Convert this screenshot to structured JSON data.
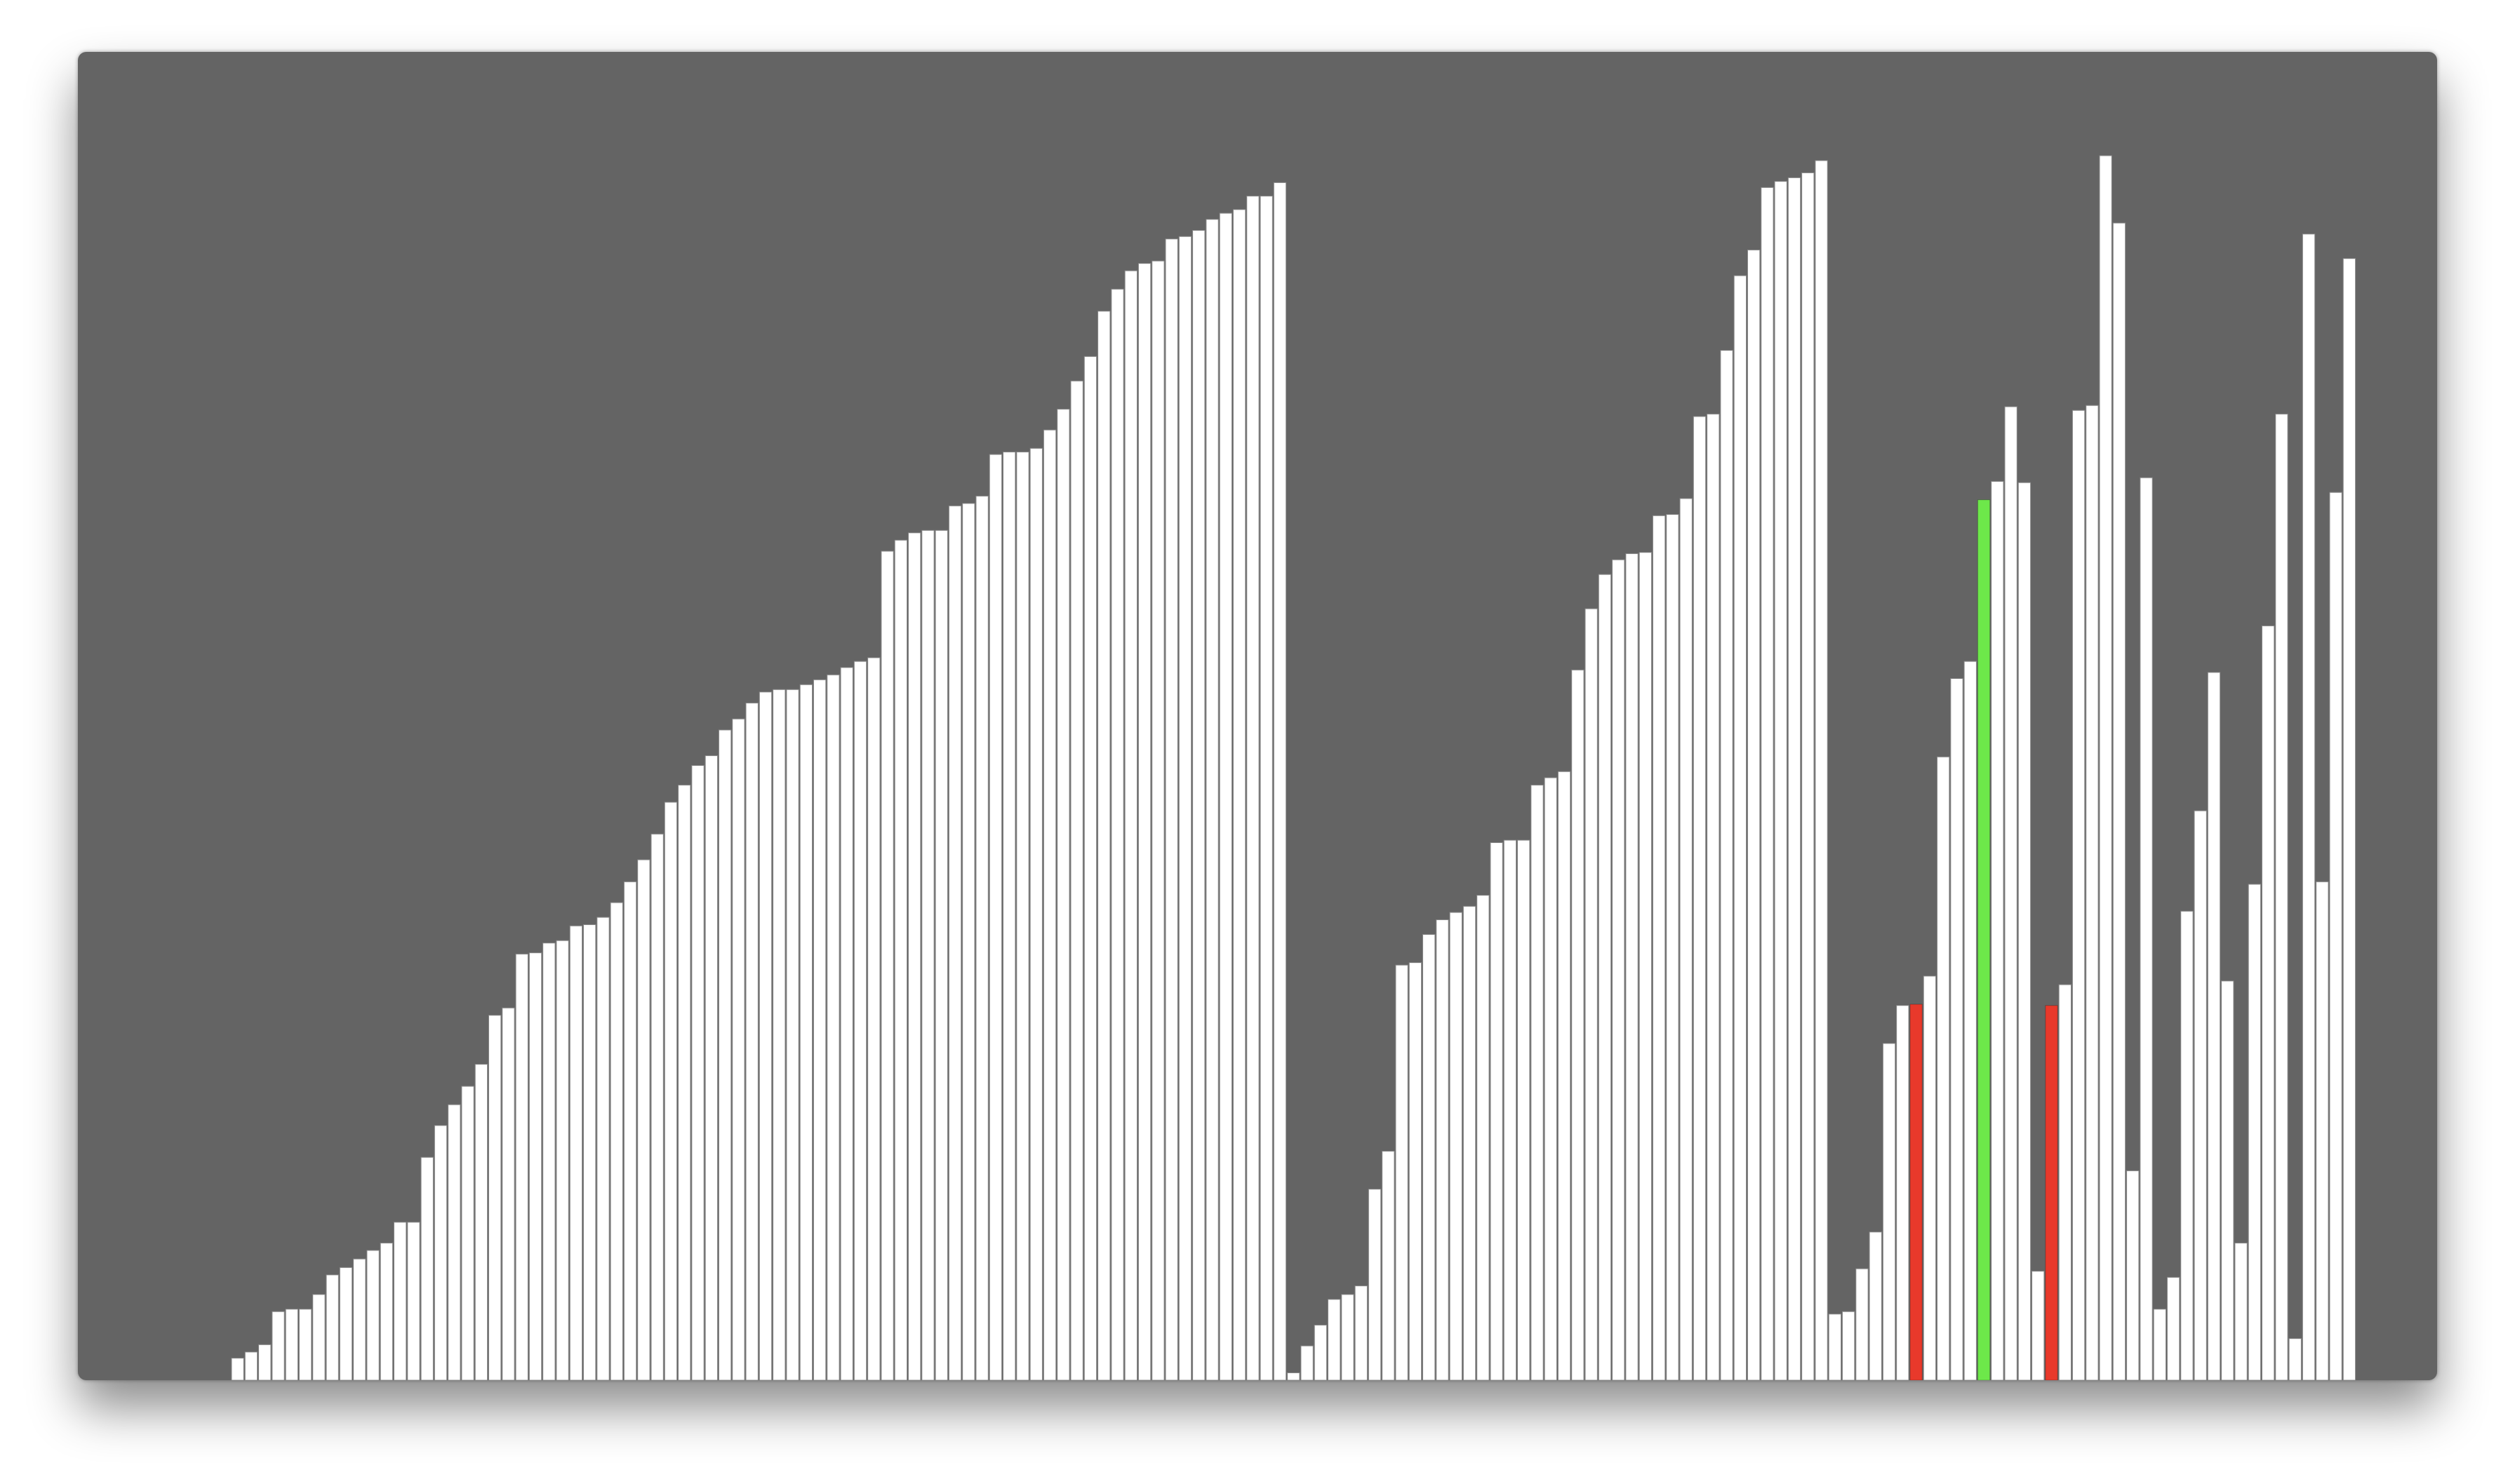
{
  "window": {
    "background": "#646464"
  },
  "colors": {
    "default": "#ffffff",
    "compare": "#e8392b",
    "active": "#6de84a"
  },
  "chart_data": {
    "type": "bar",
    "xlabel": "",
    "ylabel": "",
    "ylim": [
      0,
      1000
    ],
    "values": [
      18,
      23,
      29,
      56,
      58,
      58,
      70,
      86,
      92,
      99,
      106,
      112,
      129,
      129,
      182,
      208,
      225,
      240,
      258,
      298,
      304,
      348,
      349,
      357,
      359,
      371,
      372,
      378,
      390,
      407,
      425,
      446,
      472,
      486,
      502,
      510,
      531,
      540,
      553,
      562,
      564,
      564,
      568,
      572,
      576,
      582,
      587,
      590,
      677,
      686,
      692,
      694,
      694,
      714,
      716,
      722,
      756,
      758,
      758,
      761,
      776,
      793,
      816,
      836,
      873,
      891,
      906,
      912,
      914,
      932,
      934,
      939,
      948,
      953,
      956,
      967,
      967,
      978,
      6,
      28,
      45,
      66,
      70,
      77,
      156,
      187,
      339,
      341,
      364,
      376,
      382,
      387,
      396,
      439,
      441,
      441,
      486,
      492,
      497,
      580,
      630,
      658,
      670,
      675,
      676,
      706,
      707,
      720,
      787,
      789,
      841,
      902,
      923,
      974,
      979,
      982,
      986,
      996,
      54,
      56,
      91,
      121,
      275,
      306,
      307,
      330,
      509,
      573,
      587,
      719,
      734,
      795,
      733,
      89,
      306,
      323,
      792,
      796,
      1000,
      945,
      171,
      737,
      58,
      84,
      383,
      465,
      578,
      326,
      112,
      405,
      616,
      789,
      34,
      936,
      407,
      725,
      916
    ],
    "highlights": [
      {
        "index": 124,
        "state": "compare"
      },
      {
        "index": 129,
        "state": "active"
      },
      {
        "index": 134,
        "state": "compare"
      }
    ]
  }
}
